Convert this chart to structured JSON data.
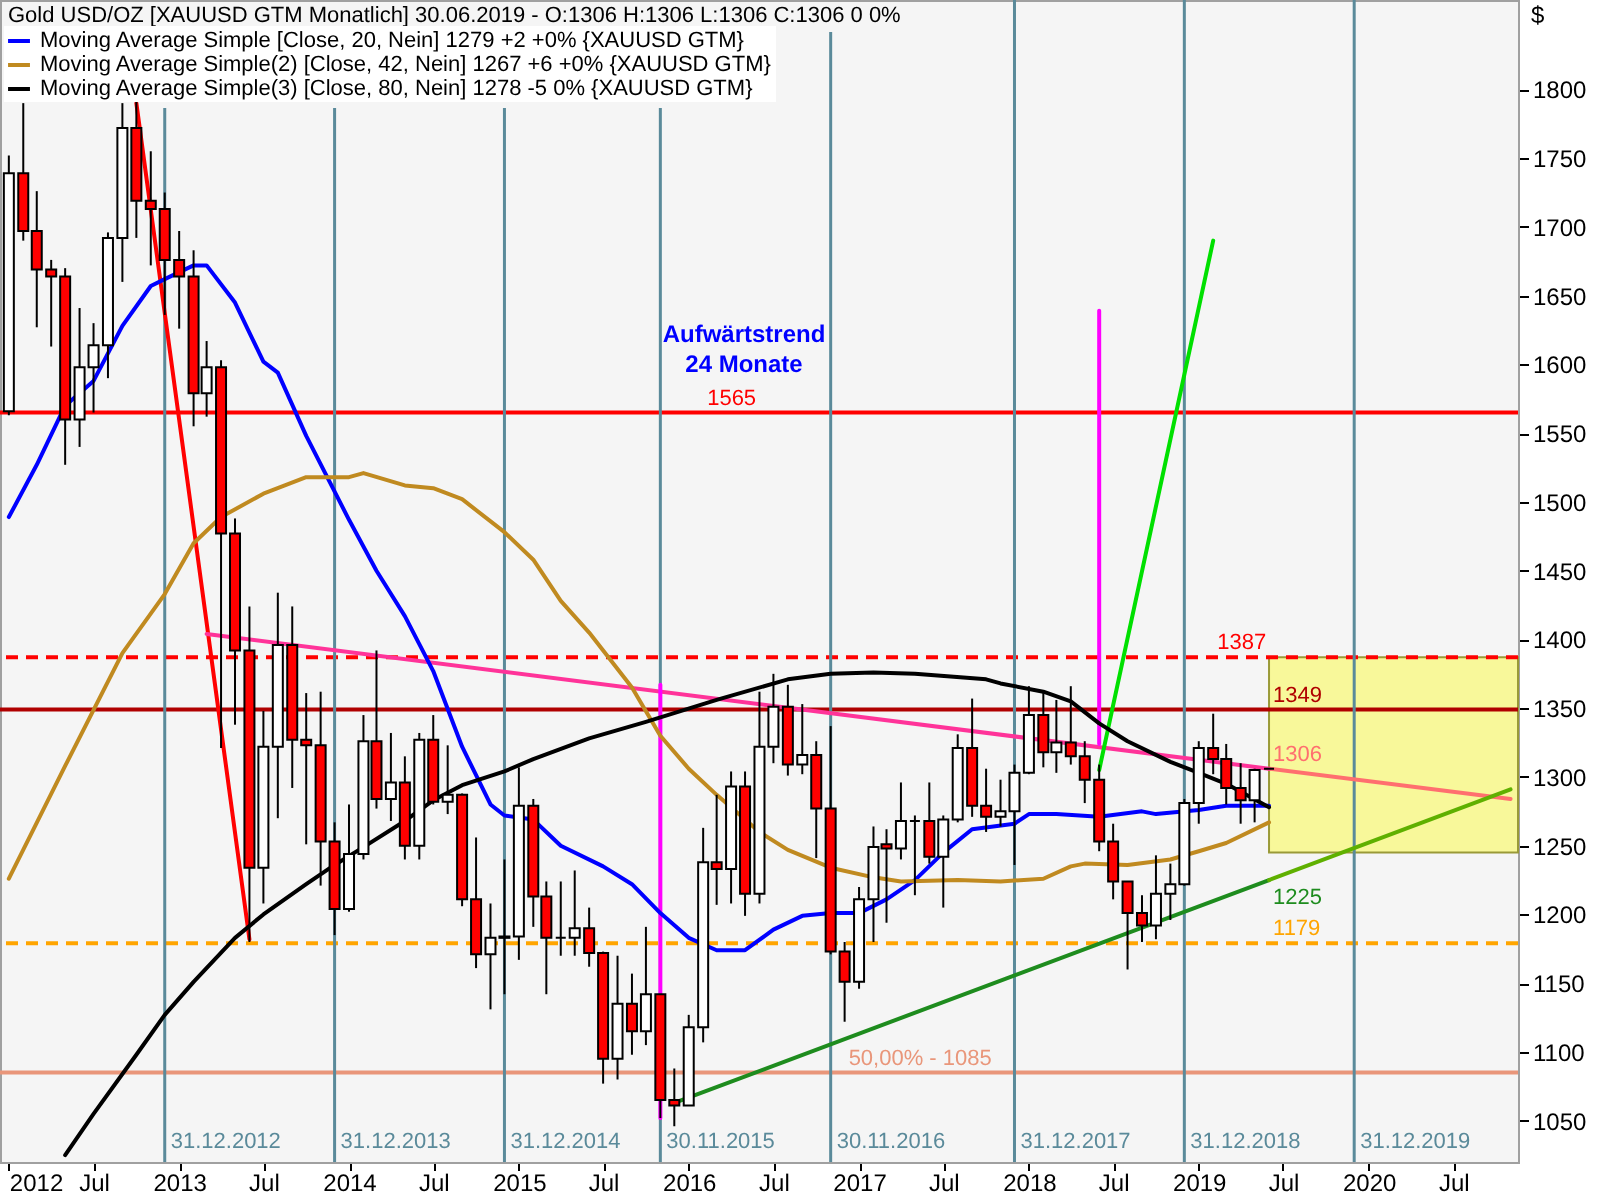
{
  "chart_data": {
    "type": "candlestick",
    "title": "Gold USD/OZ [XAUUSD GTM Monatlich] 30.06.2019 - O:1306 H:1306 L:1306 C:1306 0 0%",
    "ylabel": "$",
    "x": [
      "2012-01",
      "2012-02",
      "2012-03",
      "2012-04",
      "2012-05",
      "2012-06",
      "2012-07",
      "2012-08",
      "2012-09",
      "2012-10",
      "2012-11",
      "2012-12",
      "2013-01",
      "2013-02",
      "2013-03",
      "2013-04",
      "2013-05",
      "2013-06",
      "2013-07",
      "2013-08",
      "2013-09",
      "2013-10",
      "2013-11",
      "2013-12",
      "2014-01",
      "2014-02",
      "2014-03",
      "2014-04",
      "2014-05",
      "2014-06",
      "2014-07",
      "2014-08",
      "2014-09",
      "2014-10",
      "2014-11",
      "2014-12",
      "2015-01",
      "2015-02",
      "2015-03",
      "2015-04",
      "2015-05",
      "2015-06",
      "2015-07",
      "2015-08",
      "2015-09",
      "2015-10",
      "2015-11",
      "2015-12",
      "2016-01",
      "2016-02",
      "2016-03",
      "2016-04",
      "2016-05",
      "2016-06",
      "2016-07",
      "2016-08",
      "2016-09",
      "2016-10",
      "2016-11",
      "2016-12",
      "2017-01",
      "2017-02",
      "2017-03",
      "2017-04",
      "2017-05",
      "2017-06",
      "2017-07",
      "2017-08",
      "2017-09",
      "2017-10",
      "2017-11",
      "2017-12",
      "2018-01",
      "2018-02",
      "2018-03",
      "2018-04",
      "2018-05",
      "2018-06",
      "2018-07",
      "2018-08",
      "2018-09",
      "2018-10",
      "2018-11",
      "2018-12",
      "2019-01",
      "2019-02",
      "2019-03",
      "2019-04",
      "2019-05",
      "2019-06"
    ],
    "ohlc": [
      [
        1566,
        1752,
        1563,
        1739
      ],
      [
        1739,
        1790,
        1690,
        1697
      ],
      [
        1697,
        1726,
        1627,
        1669
      ],
      [
        1669,
        1676,
        1613,
        1664
      ],
      [
        1664,
        1670,
        1527,
        1560
      ],
      [
        1560,
        1641,
        1540,
        1598
      ],
      [
        1598,
        1630,
        1565,
        1614
      ],
      [
        1614,
        1696,
        1590,
        1692
      ],
      [
        1692,
        1790,
        1660,
        1772
      ],
      [
        1772,
        1796,
        1692,
        1719
      ],
      [
        1719,
        1755,
        1672,
        1713
      ],
      [
        1713,
        1725,
        1636,
        1676
      ],
      [
        1676,
        1697,
        1626,
        1664
      ],
      [
        1664,
        1683,
        1555,
        1579
      ],
      [
        1579,
        1617,
        1562,
        1598
      ],
      [
        1598,
        1603,
        1321,
        1477
      ],
      [
        1477,
        1488,
        1338,
        1392
      ],
      [
        1392,
        1424,
        1180,
        1234
      ],
      [
        1234,
        1348,
        1208,
        1322
      ],
      [
        1322,
        1434,
        1270,
        1396
      ],
      [
        1396,
        1424,
        1292,
        1327
      ],
      [
        1327,
        1361,
        1251,
        1323
      ],
      [
        1323,
        1362,
        1221,
        1253
      ],
      [
        1253,
        1267,
        1185,
        1204
      ],
      [
        1204,
        1280,
        1202,
        1244
      ],
      [
        1244,
        1345,
        1240,
        1326
      ],
      [
        1326,
        1392,
        1277,
        1284
      ],
      [
        1284,
        1332,
        1268,
        1296
      ],
      [
        1296,
        1315,
        1240,
        1250
      ],
      [
        1250,
        1332,
        1240,
        1327
      ],
      [
        1327,
        1345,
        1280,
        1282
      ],
      [
        1282,
        1323,
        1273,
        1287
      ],
      [
        1287,
        1288,
        1206,
        1211
      ],
      [
        1211,
        1256,
        1161,
        1171
      ],
      [
        1171,
        1208,
        1131,
        1183
      ],
      [
        1183,
        1240,
        1142,
        1184
      ],
      [
        1184,
        1307,
        1167,
        1279
      ],
      [
        1279,
        1284,
        1191,
        1213
      ],
      [
        1213,
        1224,
        1142,
        1183
      ],
      [
        1183,
        1224,
        1170,
        1183
      ],
      [
        1183,
        1232,
        1170,
        1190
      ],
      [
        1190,
        1205,
        1162,
        1172
      ],
      [
        1172,
        1173,
        1077,
        1095
      ],
      [
        1095,
        1170,
        1080,
        1135
      ],
      [
        1135,
        1157,
        1098,
        1115
      ],
      [
        1115,
        1191,
        1105,
        1142
      ],
      [
        1142,
        1142,
        1052,
        1065
      ],
      [
        1065,
        1088,
        1046,
        1061
      ],
      [
        1061,
        1127,
        1061,
        1118
      ],
      [
        1118,
        1263,
        1107,
        1238
      ],
      [
        1238,
        1287,
        1207,
        1233
      ],
      [
        1233,
        1304,
        1208,
        1293
      ],
      [
        1293,
        1304,
        1199,
        1215
      ],
      [
        1215,
        1362,
        1208,
        1322
      ],
      [
        1322,
        1375,
        1310,
        1351
      ],
      [
        1351,
        1367,
        1301,
        1309
      ],
      [
        1309,
        1353,
        1302,
        1316
      ],
      [
        1316,
        1326,
        1241,
        1277
      ],
      [
        1277,
        1337,
        1171,
        1173
      ],
      [
        1173,
        1180,
        1122,
        1151
      ],
      [
        1151,
        1220,
        1146,
        1211
      ],
      [
        1211,
        1264,
        1180,
        1249
      ],
      [
        1251,
        1262,
        1194,
        1248
      ],
      [
        1248,
        1296,
        1240,
        1268
      ],
      [
        1268,
        1272,
        1214,
        1268
      ],
      [
        1268,
        1296,
        1237,
        1242
      ],
      [
        1242,
        1272,
        1205,
        1269
      ],
      [
        1269,
        1331,
        1267,
        1321
      ],
      [
        1321,
        1357,
        1271,
        1279
      ],
      [
        1279,
        1306,
        1260,
        1271
      ],
      [
        1271,
        1298,
        1264,
        1275
      ],
      [
        1275,
        1309,
        1236,
        1303
      ],
      [
        1303,
        1366,
        1302,
        1345
      ],
      [
        1345,
        1361,
        1307,
        1318
      ],
      [
        1318,
        1356,
        1303,
        1325
      ],
      [
        1325,
        1366,
        1309,
        1315
      ],
      [
        1315,
        1326,
        1281,
        1298
      ],
      [
        1298,
        1309,
        1246,
        1253
      ],
      [
        1253,
        1266,
        1211,
        1224
      ],
      [
        1224,
        1224,
        1160,
        1201
      ],
      [
        1201,
        1214,
        1180,
        1192
      ],
      [
        1192,
        1243,
        1182,
        1215
      ],
      [
        1215,
        1237,
        1196,
        1222
      ],
      [
        1222,
        1284,
        1221,
        1281
      ],
      [
        1281,
        1326,
        1266,
        1321
      ],
      [
        1321,
        1346,
        1302,
        1313
      ],
      [
        1313,
        1324,
        1280,
        1292
      ],
      [
        1292,
        1310,
        1266,
        1283
      ],
      [
        1283,
        1306,
        1267,
        1305
      ],
      [
        1306,
        1306,
        1306,
        1306
      ]
    ],
    "colors": [
      "#ffffff",
      "#ff0000",
      "#ff0000",
      "#ff0000",
      "#ff0000",
      "#ffffff",
      "#ffffff",
      "#ffffff",
      "#ffffff",
      "#ff0000",
      "#ff0000",
      "#ff0000",
      "#ff0000",
      "#ff0000",
      "#ffffff",
      "#ff0000",
      "#ff0000",
      "#ff0000",
      "#ffffff",
      "#ffffff",
      "#ff0000",
      "#ff0000",
      "#ff0000",
      "#ff0000",
      "#ffffff",
      "#ffffff",
      "#ff0000",
      "#ffffff",
      "#ff0000",
      "#ffffff",
      "#ff0000",
      "#ffffff",
      "#ff0000",
      "#ff0000",
      "#ffffff",
      "#ffffff",
      "#ffffff",
      "#ff0000",
      "#ff0000",
      "#000000",
      "#ffffff",
      "#ff0000",
      "#ff0000",
      "#ffffff",
      "#ff0000",
      "#ffffff",
      "#ff0000",
      "#ff0000",
      "#ffffff",
      "#ffffff",
      "#ff0000",
      "#ffffff",
      "#ff0000",
      "#ffffff",
      "#ffffff",
      "#ff0000",
      "#ffffff",
      "#ff0000",
      "#ff0000",
      "#ff0000",
      "#ffffff",
      "#ffffff",
      "#ff0000",
      "#ffffff",
      "#000000",
      "#ff0000",
      "#ffffff",
      "#ffffff",
      "#ff0000",
      "#ff0000",
      "#ffffff",
      "#ffffff",
      "#ffffff",
      "#ff0000",
      "#ffffff",
      "#ff0000",
      "#ff0000",
      "#ff0000",
      "#ff0000",
      "#ff0000",
      "#ff0000",
      "#ffffff",
      "#ffffff",
      "#ffffff",
      "#ffffff",
      "#ff0000",
      "#ff0000",
      "#ff0000",
      "#ffffff",
      "#000000"
    ],
    "series": [
      {
        "type": "line",
        "color": "#ff0000",
        "x": [
          "2012-10",
          "2013-06"
        ],
        "values": [
          1790,
          1182
        ]
      },
      {
        "type": "line",
        "color": "#ff6f6f",
        "x": [
          "2019-06",
          "2020-11"
        ],
        "values": [
          1306,
          1284
        ]
      },
      {
        "type": "line",
        "color": "#ff3399",
        "x": [
          "2013-03",
          "2019-06"
        ],
        "values": [
          1404,
          1306
        ]
      },
      {
        "type": "line",
        "color": "#1e8c1e",
        "x": [
          "2015-12",
          "2019-06"
        ],
        "values": [
          1063,
          1225
        ]
      },
      {
        "type": "line",
        "color": "#5fb000",
        "x": [
          "2019-06",
          "2020-11"
        ],
        "values": [
          1225,
          1291
        ]
      },
      {
        "type": "line",
        "color": "#ff00ff",
        "x": [
          "2015-11",
          "2015-11"
        ],
        "values": [
          1052,
          1367
        ]
      },
      {
        "type": "line",
        "color": "#ff00ff",
        "x": [
          "2018-06",
          "2018-06"
        ],
        "values": [
          1324,
          1639
        ]
      },
      {
        "type": "line",
        "color": "#00e000",
        "x": [
          "2018-06",
          "2019-02"
        ],
        "values": [
          1305,
          1690
        ]
      },
      {
        "type": "line",
        "name": "Moving Average Simple [Close, 20, Nein] 1279 +2 +0% {XAUUSD GTM}",
        "color": "#0000ff",
        "x": [
          "2012-01",
          "2012-03",
          "2012-05",
          "2012-07",
          "2012-09",
          "2012-11",
          "2012-12",
          "2013-02",
          "2013-03",
          "2013-05",
          "2013-07",
          "2013-08",
          "2013-10",
          "2014-01",
          "2014-03",
          "2014-05",
          "2014-07",
          "2014-09",
          "2014-11",
          "2014-12",
          "2015-02",
          "2015-04",
          "2015-07",
          "2015-09",
          "2015-11",
          "2016-01",
          "2016-03",
          "2016-05",
          "2016-07",
          "2016-09",
          "2016-11",
          "2017-01",
          "2017-03",
          "2017-05",
          "2017-07",
          "2017-09",
          "2017-12",
          "2018-01",
          "2018-03",
          "2018-06",
          "2018-09",
          "2018-10",
          "2019-01",
          "2019-03",
          "2019-06"
        ],
        "values": [
          1489,
          1527,
          1570,
          1588,
          1628,
          1657,
          1662,
          1672,
          1672,
          1645,
          1602,
          1594,
          1548,
          1487,
          1450,
          1417,
          1377,
          1322,
          1280,
          1272,
          1269,
          1250,
          1235,
          1222,
          1201,
          1183,
          1174,
          1174,
          1189,
          1199,
          1201,
          1201,
          1211,
          1225,
          1245,
          1262,
          1266,
          1273,
          1273,
          1271,
          1275,
          1273,
          1276,
          1279,
          1279
        ]
      },
      {
        "type": "line",
        "name": "Moving Average Simple(2) [Close, 42, Nein] 1267 +6 +0% {XAUUSD GTM}",
        "color": "#c08a20",
        "x": [
          "2012-01",
          "2012-05",
          "2012-09",
          "2012-12",
          "2013-02",
          "2013-04",
          "2013-07",
          "2013-10",
          "2014-01",
          "2014-02",
          "2014-05",
          "2014-07",
          "2014-09",
          "2014-12",
          "2015-02",
          "2015-04",
          "2015-06",
          "2015-09",
          "2015-11",
          "2016-01",
          "2016-03",
          "2016-06",
          "2016-08",
          "2016-11",
          "2017-02",
          "2017-04",
          "2017-08",
          "2017-11",
          "2018-02",
          "2018-04",
          "2018-05",
          "2018-08",
          "2018-11",
          "2019-01",
          "2019-03",
          "2019-06"
        ],
        "values": [
          1226,
          1308,
          1390,
          1433,
          1470,
          1489,
          1506,
          1518,
          1518,
          1521,
          1512,
          1510,
          1502,
          1478,
          1458,
          1428,
          1405,
          1365,
          1330,
          1306,
          1287,
          1260,
          1247,
          1234,
          1227,
          1224,
          1225,
          1224,
          1226,
          1235,
          1237,
          1236,
          1240,
          1246,
          1252,
          1267
        ]
      },
      {
        "type": "line",
        "name": "Moving Average Simple(3) [Close, 80, Nein] 1278 -5 0% {XAUUSD GTM}",
        "color": "#000000",
        "x": [
          "2012-05",
          "2012-07",
          "2012-10",
          "2012-12",
          "2013-02",
          "2013-05",
          "2013-07",
          "2013-10",
          "2013-12",
          "2014-02",
          "2014-05",
          "2014-07",
          "2014-09",
          "2014-12",
          "2015-02",
          "2015-06",
          "2015-10",
          "2016-03",
          "2016-08",
          "2016-11",
          "2017-02",
          "2017-05",
          "2017-10",
          "2017-11",
          "2018-02",
          "2018-04",
          "2018-06",
          "2018-08",
          "2018-11",
          "2019-01",
          "2019-03",
          "2019-06"
        ],
        "values": [
          1025,
          1055,
          1098,
          1127,
          1151,
          1183,
          1200,
          1222,
          1236,
          1249,
          1268,
          1283,
          1294,
          1304,
          1313,
          1328,
          1340,
          1356,
          1371,
          1375,
          1376,
          1375,
          1371,
          1368,
          1362,
          1355,
          1339,
          1326,
          1311,
          1303,
          1295,
          1278
        ]
      }
    ],
    "xlim": [
      "2011-12-13",
      "2020-11-17"
    ],
    "xticks": [
      "2012",
      {
        "value": "2012-07",
        "label": "Jul"
      },
      "2013",
      {
        "value": "2013-07",
        "label": "Jul"
      },
      "2014",
      {
        "value": "2014-07",
        "label": "Jul"
      },
      "2015",
      {
        "value": "2015-07",
        "label": "Jul"
      },
      "2016",
      {
        "value": "2016-07",
        "label": "Jul"
      },
      "2017",
      {
        "value": "2017-07",
        "label": "Jul"
      },
      "2018",
      {
        "value": "2018-07",
        "label": "Jul"
      },
      "2019",
      {
        "value": "2019-07",
        "label": "Jul"
      },
      "2020",
      {
        "value": "2020-07",
        "label": "Jul"
      }
    ],
    "ylim": [
      1020,
      1865
    ],
    "yticks": [
      1050,
      1100,
      1150,
      1200,
      1250,
      1300,
      1350,
      1400,
      1450,
      1500,
      1550,
      1600,
      1650,
      1700,
      1750,
      1800
    ],
    "grid": false,
    "legend": "top left",
    "ref_lines": [
      {
        "axis": "y",
        "value": 1565,
        "color": "#ff0000"
      },
      {
        "axis": "y",
        "value": 1387,
        "color": "#ff0000",
        "line_style": "dashed"
      },
      {
        "axis": "y",
        "value": 1349,
        "color": "#b00000"
      },
      {
        "axis": "y",
        "value": 1179,
        "color": "#ffa500",
        "line_style": "dashed"
      },
      {
        "axis": "y",
        "value": 1085,
        "color": "#e9967a"
      },
      {
        "axis": "x",
        "value": "2012-12",
        "label": "31.12.2012",
        "color": "#5a8a9a"
      },
      {
        "axis": "x",
        "value": "2013-12",
        "label": "31.12.2013",
        "color": "#5a8a9a"
      },
      {
        "axis": "x",
        "value": "2014-12",
        "label": "31.12.2014",
        "color": "#5a8a9a"
      },
      {
        "axis": "x",
        "value": "2015-11",
        "label": "30.11.2015",
        "color": "#5a8a9a"
      },
      {
        "axis": "x",
        "value": "2016-11",
        "label": "30.11.2016",
        "color": "#5a8a9a"
      },
      {
        "axis": "x",
        "value": "2017-12",
        "label": "31.12.2017",
        "color": "#5a8a9a"
      },
      {
        "axis": "x",
        "value": "2018-12",
        "label": "31.12.2018",
        "color": "#5a8a9a"
      },
      {
        "axis": "x",
        "value": "2019-12",
        "label": "31.12.2019",
        "color": "#5a8a9a"
      }
    ],
    "bands": [
      {
        "axis": "y",
        "from": 1245,
        "to": 1387,
        "color": "#f8f89a"
      }
    ],
    "annotations": [
      {
        "text": "1565",
        "x": "2016-02",
        "y": 1565
      },
      {
        "text": "1387",
        "x": "2019-02",
        "y": 1387
      },
      {
        "text": "1349",
        "x": "2019-06",
        "y": 1349
      },
      {
        "text": "1306",
        "x": "2019-06",
        "y": 1306
      },
      {
        "text": "1225",
        "x": "2019-06",
        "y": 1225
      },
      {
        "text": "1179",
        "x": "2019-06",
        "y": 1179
      },
      {
        "text": "50,00% - 1085",
        "x": "2016-12",
        "y": 1085
      },
      "Aufwärtstrend",
      "24 Monate"
    ]
  }
}
